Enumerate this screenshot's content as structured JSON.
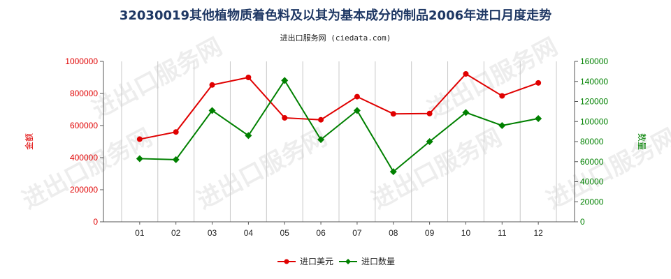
{
  "header": {
    "title": "32030019其他植物质着色料及以其为基本成分的制品2006年进口月度走势",
    "subtitle": "进出口服务网 (ciedata.com)"
  },
  "watermark": "进出口服务网",
  "chart_data": {
    "type": "line",
    "categories": [
      "01",
      "02",
      "03",
      "04",
      "05",
      "06",
      "07",
      "08",
      "09",
      "10",
      "11",
      "12"
    ],
    "y_left": {
      "label": "金额",
      "ylim": [
        0,
        1000000
      ],
      "ticks": [
        "0",
        "200000",
        "400000",
        "600000",
        "800000",
        "1000000"
      ],
      "color": "#e00000"
    },
    "y_right": {
      "label": "数量",
      "ylim": [
        0,
        160000
      ],
      "ticks": [
        "0",
        "20000",
        "40000",
        "60000",
        "80000",
        "100000",
        "120000",
        "140000",
        "160000"
      ],
      "color": "#008000"
    },
    "series": [
      {
        "name": "进口美元",
        "axis": "left",
        "color": "#e00000",
        "marker": "circle",
        "values": [
          515000,
          560000,
          853000,
          900000,
          648000,
          636000,
          780000,
          673000,
          675000,
          922000,
          785000,
          866000
        ]
      },
      {
        "name": "进口数量",
        "axis": "right",
        "color": "#008000",
        "marker": "diamond",
        "values": [
          63000,
          62000,
          111000,
          86000,
          141000,
          82000,
          111000,
          50000,
          80000,
          109000,
          96000,
          103000
        ]
      }
    ],
    "grid": true,
    "legend_position": "bottom-center"
  }
}
